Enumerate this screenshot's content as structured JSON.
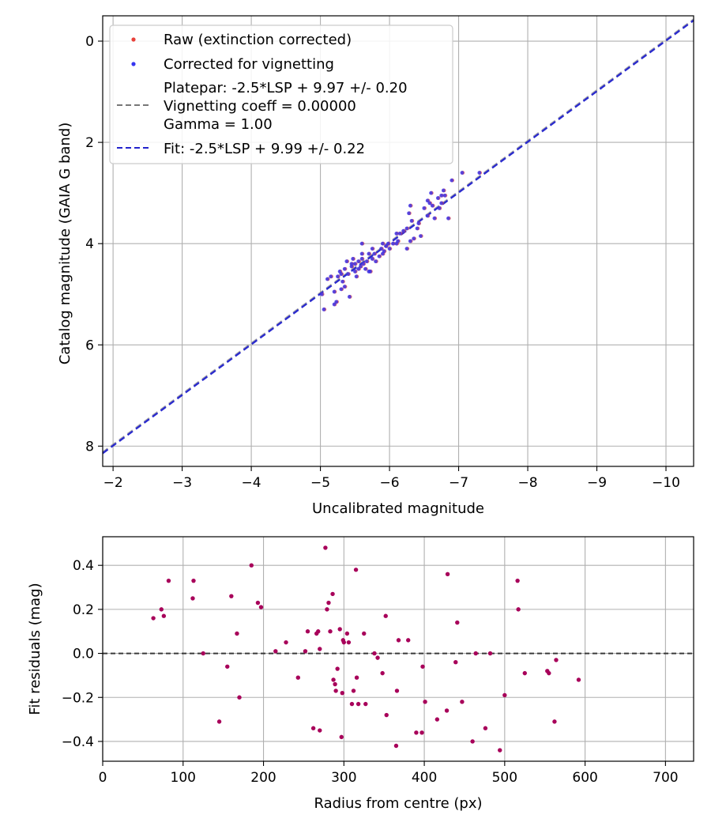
{
  "colors": {
    "raw_points": "#e8413a",
    "corrected_points": "#3535f0",
    "overlap_points": "#6a1fbf",
    "residual_points": "#a8005a",
    "fit_line": "#2222cc",
    "platepar_line": "#777777",
    "zero_line": "#222222"
  },
  "chart_data": [
    {
      "type": "scatter",
      "title": "",
      "xlabel": "Uncalibrated magnitude",
      "ylabel": "Catalog magnitude (GAIA G band)",
      "xlim": [
        -1.85,
        -10.4
      ],
      "ylim": [
        8.4,
        -0.5
      ],
      "xticks": [
        -2,
        -3,
        -4,
        -5,
        -6,
        -7,
        -8,
        -9,
        -10
      ],
      "xtick_labels": [
        "−2",
        "−3",
        "−4",
        "−5",
        "−6",
        "−7",
        "−8",
        "−9",
        "−10"
      ],
      "yticks": [
        0,
        2,
        4,
        6,
        8
      ],
      "ytick_labels": [
        "0",
        "2",
        "4",
        "6",
        "8"
      ],
      "grid": true,
      "legend_location": "top-left",
      "legend": [
        {
          "label": "Raw (extinction corrected)",
          "kind": "marker",
          "color_key": "raw_points"
        },
        {
          "label": "Corrected for vignetting",
          "kind": "marker",
          "color_key": "corrected_points"
        },
        {
          "label_lines": [
            "Platepar: -2.5*LSP + 9.97 +/- 0.20",
            "Vignetting coeff = 0.00000",
            "Gamma = 1.00"
          ],
          "kind": "dashed-line",
          "color_key": "platepar_line"
        },
        {
          "label": "Fit: -2.5*LSP + 9.99 +/- 0.22",
          "kind": "dashed-line",
          "color_key": "fit_line"
        }
      ],
      "series": [
        {
          "name": "Fit: -2.5*LSP + 9.99 +/- 0.22",
          "kind": "line",
          "slope": 1.0,
          "intercept": 9.99
        },
        {
          "name": "Platepar: -2.5*LSP + 9.97 +/- 0.20",
          "kind": "line",
          "slope": 1.0,
          "intercept": 9.97
        },
        {
          "name": "Corrected for vignetting",
          "kind": "points",
          "x": [
            -5.02,
            -5.05,
            -5.15,
            -5.2,
            -5.23,
            -5.25,
            -5.28,
            -5.3,
            -5.32,
            -5.35,
            -5.35,
            -5.38,
            -5.4,
            -5.42,
            -5.45,
            -5.47,
            -5.5,
            -5.5,
            -5.52,
            -5.55,
            -5.55,
            -5.58,
            -5.6,
            -5.6,
            -5.62,
            -5.65,
            -5.67,
            -5.7,
            -5.72,
            -5.75,
            -5.75,
            -5.78,
            -5.8,
            -5.85,
            -5.88,
            -5.9,
            -5.92,
            -5.95,
            -5.98,
            -6.0,
            -6.05,
            -6.1,
            -6.12,
            -6.15,
            -6.2,
            -6.25,
            -6.25,
            -6.28,
            -6.3,
            -6.32,
            -6.35,
            -6.4,
            -6.42,
            -6.45,
            -6.5,
            -6.55,
            -6.58,
            -6.6,
            -6.62,
            -6.65,
            -6.7,
            -6.72,
            -6.75,
            -6.78,
            -6.8,
            -6.85,
            -6.9,
            -7.05,
            -7.3,
            -5.1,
            -5.2,
            -5.3,
            -5.45,
            -5.6,
            -5.7,
            -5.9,
            -6.1,
            -6.3,
            -6.55,
            -6.75
          ],
          "y": [
            5.0,
            5.3,
            4.65,
            5.2,
            5.15,
            4.65,
            4.55,
            4.9,
            4.75,
            4.5,
            4.85,
            4.35,
            4.6,
            5.05,
            4.45,
            4.3,
            4.55,
            4.4,
            4.65,
            4.35,
            4.5,
            4.45,
            4.0,
            4.3,
            4.4,
            4.5,
            4.35,
            4.2,
            4.55,
            4.1,
            4.3,
            4.2,
            4.35,
            4.25,
            4.1,
            4.2,
            4.15,
            4.05,
            4.0,
            4.1,
            4.0,
            4.0,
            3.95,
            3.8,
            3.75,
            3.7,
            4.1,
            3.4,
            3.25,
            3.55,
            3.9,
            3.7,
            3.6,
            3.85,
            3.3,
            3.45,
            3.2,
            3.0,
            3.25,
            3.5,
            3.1,
            3.3,
            3.2,
            2.95,
            3.05,
            3.5,
            2.75,
            2.6,
            2.6,
            4.7,
            4.95,
            4.6,
            4.4,
            4.2,
            4.55,
            4.0,
            3.8,
            3.95,
            3.15,
            3.05
          ]
        }
      ]
    },
    {
      "type": "scatter",
      "title": "",
      "xlabel": "Radius from centre (px)",
      "ylabel": "Fit residuals (mag)",
      "xlim": [
        0,
        735
      ],
      "ylim": [
        -0.49,
        0.53
      ],
      "xticks": [
        0,
        100,
        200,
        300,
        400,
        500,
        600,
        700
      ],
      "xtick_labels": [
        "0",
        "100",
        "200",
        "300",
        "400",
        "500",
        "600",
        "700"
      ],
      "yticks": [
        0.4,
        0.2,
        0.0,
        -0.2,
        -0.4
      ],
      "ytick_labels": [
        "0.4",
        "0.2",
        "0.0",
        "−0.2",
        "−0.4"
      ],
      "grid": true,
      "reference_line": 0.0,
      "series": [
        {
          "name": "Residuals",
          "kind": "points",
          "x": [
            63,
            73,
            76,
            82,
            112,
            113,
            125,
            145,
            155,
            160,
            167,
            170,
            185,
            193,
            197,
            215,
            228,
            243,
            252,
            255,
            262,
            266,
            268,
            270,
            270,
            277,
            279,
            281,
            283,
            286,
            287,
            289,
            290,
            292,
            295,
            297,
            298,
            299,
            300,
            304,
            306,
            310,
            312,
            315,
            316,
            318,
            325,
            327,
            338,
            342,
            348,
            352,
            353,
            365,
            366,
            368,
            380,
            390,
            397,
            398,
            401,
            416,
            428,
            429,
            439,
            441,
            447,
            460,
            464,
            476,
            482,
            494,
            500,
            516,
            517,
            525,
            553,
            555,
            564,
            562,
            592
          ],
          "y": [
            0.16,
            0.2,
            0.17,
            0.33,
            0.25,
            0.33,
            0.0,
            -0.31,
            -0.06,
            0.26,
            0.09,
            -0.2,
            0.4,
            0.23,
            0.21,
            0.01,
            0.05,
            -0.11,
            0.01,
            0.1,
            -0.34,
            0.09,
            0.1,
            0.02,
            -0.35,
            0.48,
            0.2,
            0.23,
            0.1,
            0.27,
            -0.12,
            -0.14,
            -0.17,
            -0.07,
            0.11,
            -0.38,
            -0.18,
            0.06,
            0.05,
            0.09,
            0.05,
            -0.23,
            -0.17,
            0.38,
            -0.11,
            -0.23,
            0.09,
            -0.23,
            0.0,
            -0.02,
            -0.09,
            0.17,
            -0.28,
            -0.42,
            -0.17,
            0.06,
            0.06,
            -0.36,
            -0.36,
            -0.06,
            -0.22,
            -0.3,
            -0.26,
            0.36,
            -0.04,
            0.14,
            -0.22,
            -0.4,
            0.0,
            -0.34,
            0.0,
            -0.44,
            -0.19,
            0.33,
            0.2,
            -0.09,
            -0.08,
            -0.09,
            -0.03,
            -0.31,
            -0.12
          ]
        }
      ]
    }
  ]
}
